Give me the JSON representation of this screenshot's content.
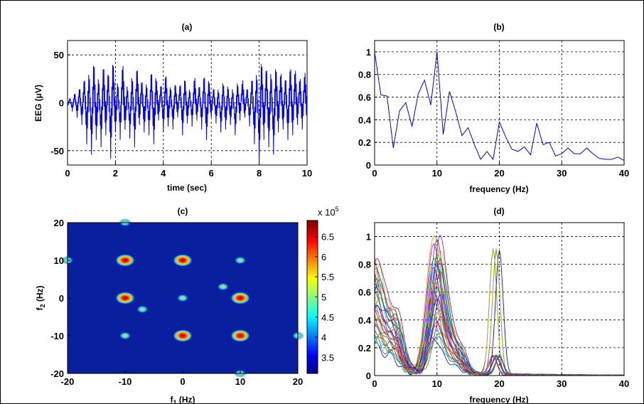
{
  "colors": {
    "line": "#0000ff",
    "heat_bg": "#0a1ea0",
    "frame": "#000000"
  },
  "charts": [
    {
      "id": "a",
      "type": "line",
      "title": "(a)",
      "xlabel": "time (sec)",
      "ylabel": "EEG (μV)",
      "xlim": [
        0,
        10
      ],
      "ylim": [
        -65,
        65
      ],
      "xticks": [
        0,
        2,
        4,
        6,
        8,
        10
      ],
      "yticks": [
        -50,
        0,
        50
      ],
      "xtick_labels": [
        "0",
        "2",
        "4",
        "6",
        "8",
        "10"
      ],
      "ytick_labels": [
        "-50",
        "0",
        "50"
      ],
      "grid": true
    },
    {
      "id": "b",
      "type": "line",
      "title": "(b)",
      "xlabel": "frequency (Hz)",
      "ylabel": "",
      "xlim": [
        0,
        40
      ],
      "ylim": [
        0,
        1.1
      ],
      "xticks": [
        0,
        10,
        20,
        30,
        40
      ],
      "yticks": [
        0,
        0.2,
        0.4,
        0.6,
        0.8,
        1
      ],
      "xtick_labels": [
        "0",
        "10",
        "20",
        "30",
        "40"
      ],
      "ytick_labels": [
        "0",
        "0.2",
        "0.4",
        "0.6",
        "0.8",
        "1"
      ],
      "grid": true
    },
    {
      "id": "c",
      "type": "heatmap",
      "title": "(c)",
      "xlabel": "f",
      "xlabel_sub": "1",
      "xlabel_unit": " (Hz)",
      "ylabel": "f",
      "ylabel_sub": "2",
      "ylabel_unit": " (Hz)",
      "xlim": [
        -20,
        20
      ],
      "ylim": [
        -20,
        20
      ],
      "xticks": [
        -20,
        -10,
        0,
        10,
        20
      ],
      "yticks": [
        -20,
        -10,
        0,
        10,
        20
      ],
      "xtick_labels": [
        "-20",
        "-10",
        "0",
        "10",
        "20"
      ],
      "ytick_labels": [
        "-20",
        "-10",
        "0",
        "10",
        "20"
      ],
      "colorbar_ticks": [
        "6.5",
        "6",
        "5.5",
        "5",
        "4.5",
        "4",
        "3.5"
      ],
      "colorbar_tick_values": [
        6.5,
        6,
        5.5,
        5,
        4.5,
        4,
        3.5
      ],
      "colorbar_range": [
        3.1,
        6.9
      ],
      "colorbar_multiplier": "x 10",
      "colorbar_exponent": "5"
    },
    {
      "id": "d",
      "type": "line",
      "title": "(d)",
      "xlabel": "frequency (Hz)",
      "ylabel": "",
      "xlim": [
        0,
        40
      ],
      "ylim": [
        0,
        1.1
      ],
      "xticks": [
        0,
        10,
        20,
        30,
        40
      ],
      "yticks": [
        0,
        0.2,
        0.4,
        0.6,
        0.8,
        1
      ],
      "xtick_labels": [
        "0",
        "10",
        "20",
        "30",
        "40"
      ],
      "ytick_labels": [
        "0",
        "0.2",
        "0.4",
        "0.6",
        "0.8",
        "1"
      ],
      "grid": true
    }
  ],
  "chart_data": [
    {
      "type": "line",
      "title": "(a)",
      "series": [
        {
          "x": [
            0,
            0.1,
            0.2,
            0.3,
            0.4,
            0.5,
            0.6,
            0.7,
            0.8,
            0.9,
            1.0,
            1.1,
            1.2,
            1.3,
            1.4,
            1.5,
            1.6,
            1.7,
            1.8,
            1.9,
            2.0,
            2.1,
            2.2,
            2.3,
            2.4,
            2.5,
            2.6,
            2.7,
            2.8,
            2.9,
            3.0,
            3.1,
            3.2,
            3.3,
            3.4,
            3.5,
            3.6,
            3.7,
            3.8,
            3.9,
            4.0,
            4.1,
            4.2,
            4.3,
            4.4,
            4.5,
            4.6,
            4.7,
            4.8,
            4.9,
            5.0,
            5.1,
            5.2,
            5.3,
            5.4,
            5.5,
            5.6,
            5.7,
            5.8,
            5.9,
            6.0,
            6.1,
            6.2,
            6.3,
            6.4,
            6.5,
            6.6,
            6.7,
            6.8,
            6.9,
            7.0,
            7.1,
            7.2,
            7.3,
            7.4,
            7.5,
            7.6,
            7.7,
            7.8,
            7.9,
            8.0,
            8.1,
            8.2,
            8.3,
            8.4,
            8.5,
            8.6,
            8.7,
            8.8,
            8.9,
            9.0,
            9.1,
            9.2,
            9.3,
            9.4,
            9.5,
            9.6,
            9.7,
            9.8,
            9.9,
            10.0
          ],
          "y": [
            -3,
            4,
            -6,
            8,
            -10,
            12,
            -15,
            20,
            -28,
            22,
            -35,
            30,
            -25,
            18,
            -30,
            28,
            -22,
            25,
            -38,
            30,
            -20,
            15,
            -25,
            30,
            -18,
            12,
            -24,
            20,
            -30,
            26,
            -15,
            18,
            -20,
            14,
            -22,
            25,
            -28,
            18,
            -12,
            15,
            -20,
            22,
            -16,
            12,
            -18,
            14,
            -10,
            16,
            -22,
            18,
            -14,
            10,
            -16,
            20,
            -12,
            14,
            -18,
            22,
            -25,
            16,
            -10,
            12,
            -14,
            10,
            -20,
            15,
            -18,
            12,
            -15,
            10,
            -22,
            14,
            -12,
            18,
            -10,
            12,
            -16,
            20,
            -28,
            22,
            -40,
            30,
            -25,
            28,
            -30,
            22,
            -35,
            26,
            -20,
            24,
            -18,
            20,
            -25,
            28,
            -22,
            26,
            -15,
            20,
            -18,
            24,
            -12
          ]
        }
      ]
    },
    {
      "type": "line",
      "title": "(b)",
      "xlabel": "frequency (Hz)",
      "series": [
        {
          "x": [
            0,
            1,
            2,
            3,
            4,
            5,
            6,
            7,
            8,
            9,
            10,
            11,
            12,
            13,
            14,
            15,
            16,
            17,
            18,
            19,
            20,
            21,
            22,
            23,
            24,
            25,
            26,
            27,
            28,
            29,
            30,
            31,
            32,
            33,
            34,
            35,
            36,
            37,
            38,
            39,
            40
          ],
          "y": [
            1.0,
            0.62,
            0.61,
            0.15,
            0.48,
            0.55,
            0.34,
            0.63,
            0.75,
            0.53,
            1.0,
            0.27,
            0.65,
            0.47,
            0.26,
            0.33,
            0.18,
            0.05,
            0.12,
            0.05,
            0.38,
            0.25,
            0.14,
            0.12,
            0.16,
            0.09,
            0.37,
            0.18,
            0.2,
            0.08,
            0.1,
            0.15,
            0.1,
            0.1,
            0.15,
            0.1,
            0.06,
            0.05,
            0.05,
            0.07,
            0.04
          ]
        }
      ]
    },
    {
      "type": "heatmap",
      "title": "(c)",
      "xlim": [
        -20,
        20
      ],
      "ylim": [
        -20,
        20
      ],
      "colorbar": {
        "ticks": [
          3.5,
          4,
          4.5,
          5,
          5.5,
          6,
          6.5
        ],
        "scale": "x 10^5"
      },
      "hotspots": [
        {
          "x": -10,
          "y": 10,
          "v": 6.9
        },
        {
          "x": 0,
          "y": 10,
          "v": 6.9
        },
        {
          "x": 10,
          "y": 10,
          "v": 5.5
        },
        {
          "x": -10,
          "y": 0,
          "v": 6.9
        },
        {
          "x": 0,
          "y": 0,
          "v": 5.0
        },
        {
          "x": 10,
          "y": 0,
          "v": 6.9
        },
        {
          "x": -10,
          "y": -10,
          "v": 5.5
        },
        {
          "x": 0,
          "y": -10,
          "v": 6.9
        },
        {
          "x": 10,
          "y": -10,
          "v": 6.9
        },
        {
          "x": -20,
          "y": 10,
          "v": 5.5
        },
        {
          "x": 20,
          "y": -10,
          "v": 5.5
        },
        {
          "x": -10,
          "y": 20,
          "v": 5.0
        },
        {
          "x": 10,
          "y": -20,
          "v": 5.0
        },
        {
          "x": 7,
          "y": 3,
          "v": 5.0
        },
        {
          "x": -7,
          "y": -3,
          "v": 5.0
        }
      ]
    },
    {
      "type": "line",
      "title": "(d)",
      "xlabel": "frequency (Hz)",
      "series_count": 30,
      "peaks": [
        {
          "x": 0,
          "y": 0.82
        },
        {
          "x": 10,
          "y": 1.0
        },
        {
          "x": 19.5,
          "y": 0.9
        },
        {
          "x": 3,
          "y": 0.45
        },
        {
          "x": 13,
          "y": 0.23
        }
      ]
    }
  ]
}
